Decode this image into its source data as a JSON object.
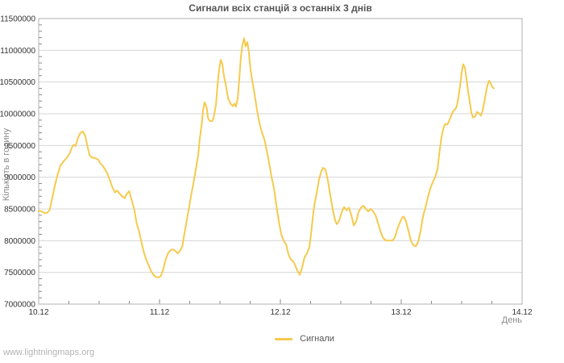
{
  "footer": {
    "text": "www.lightningmaps.org"
  },
  "colors": {
    "accent_line": "#f5ca4d",
    "grid": "#d6d6d6",
    "frame": "#b0b0b0",
    "tick": "#888888",
    "tick_text": "#333333",
    "title_text": "#555555",
    "axis_title_text": "#8a8a8a",
    "watermark_text": "#b3b3b3",
    "background": "#ffffff"
  },
  "chart_data": {
    "type": "line",
    "title": "Сигнали всіх станцій з останніх 3 днів",
    "xlabel": "День",
    "ylabel": "Кількість в годину",
    "grid": "horizontal",
    "x_range_days": [
      0,
      4
    ],
    "x_tick_labels": [
      "10.12",
      "11.12",
      "12.12",
      "13.12",
      "14.12"
    ],
    "x_tick_days": [
      0,
      1,
      2,
      3,
      4
    ],
    "x_minor_step_days": 0.25,
    "ylim": [
      7000000,
      11500000
    ],
    "y_ticks": [
      7000000,
      7500000,
      8000000,
      8500000,
      9000000,
      9500000,
      10000000,
      10500000,
      11000000,
      11500000
    ],
    "y_minor_step": 100000,
    "legend": {
      "position": "bottom-center",
      "entries": [
        {
          "label": "Сигнали",
          "color": "#f5ca4d"
        }
      ]
    },
    "series": [
      {
        "name": "Сигнали",
        "color": "#f5ca4d",
        "points": [
          [
            0.0,
            8470000
          ],
          [
            0.03,
            8460000
          ],
          [
            0.05,
            8430000
          ],
          [
            0.07,
            8440000
          ],
          [
            0.09,
            8480000
          ],
          [
            0.1,
            8560000
          ],
          [
            0.115,
            8700000
          ],
          [
            0.135,
            8880000
          ],
          [
            0.155,
            9030000
          ],
          [
            0.18,
            9180000
          ],
          [
            0.205,
            9250000
          ],
          [
            0.23,
            9300000
          ],
          [
            0.255,
            9370000
          ],
          [
            0.275,
            9470000
          ],
          [
            0.29,
            9510000
          ],
          [
            0.305,
            9490000
          ],
          [
            0.325,
            9620000
          ],
          [
            0.345,
            9700000
          ],
          [
            0.365,
            9720000
          ],
          [
            0.385,
            9650000
          ],
          [
            0.4,
            9520000
          ],
          [
            0.42,
            9350000
          ],
          [
            0.44,
            9310000
          ],
          [
            0.465,
            9300000
          ],
          [
            0.49,
            9280000
          ],
          [
            0.51,
            9220000
          ],
          [
            0.53,
            9180000
          ],
          [
            0.55,
            9120000
          ],
          [
            0.57,
            9050000
          ],
          [
            0.59,
            8950000
          ],
          [
            0.61,
            8840000
          ],
          [
            0.63,
            8760000
          ],
          [
            0.65,
            8790000
          ],
          [
            0.67,
            8740000
          ],
          [
            0.69,
            8700000
          ],
          [
            0.71,
            8670000
          ],
          [
            0.73,
            8740000
          ],
          [
            0.75,
            8780000
          ],
          [
            0.76,
            8700000
          ],
          [
            0.775,
            8600000
          ],
          [
            0.79,
            8500000
          ],
          [
            0.81,
            8280000
          ],
          [
            0.83,
            8150000
          ],
          [
            0.85,
            7980000
          ],
          [
            0.87,
            7820000
          ],
          [
            0.89,
            7700000
          ],
          [
            0.91,
            7610000
          ],
          [
            0.93,
            7520000
          ],
          [
            0.95,
            7460000
          ],
          [
            0.97,
            7430000
          ],
          [
            0.99,
            7420000
          ],
          [
            1.01,
            7440000
          ],
          [
            1.03,
            7540000
          ],
          [
            1.05,
            7700000
          ],
          [
            1.07,
            7800000
          ],
          [
            1.09,
            7850000
          ],
          [
            1.11,
            7860000
          ],
          [
            1.13,
            7840000
          ],
          [
            1.15,
            7800000
          ],
          [
            1.17,
            7840000
          ],
          [
            1.19,
            7920000
          ],
          [
            1.2,
            8050000
          ],
          [
            1.22,
            8260000
          ],
          [
            1.24,
            8480000
          ],
          [
            1.26,
            8700000
          ],
          [
            1.28,
            8900000
          ],
          [
            1.3,
            9120000
          ],
          [
            1.32,
            9350000
          ],
          [
            1.333,
            9600000
          ],
          [
            1.35,
            9850000
          ],
          [
            1.36,
            10050000
          ],
          [
            1.373,
            10180000
          ],
          [
            1.39,
            10100000
          ],
          [
            1.4,
            9940000
          ],
          [
            1.413,
            9890000
          ],
          [
            1.433,
            9880000
          ],
          [
            1.447,
            9930000
          ],
          [
            1.467,
            10150000
          ],
          [
            1.48,
            10450000
          ],
          [
            1.493,
            10700000
          ],
          [
            1.507,
            10850000
          ],
          [
            1.52,
            10780000
          ],
          [
            1.533,
            10600000
          ],
          [
            1.55,
            10440000
          ],
          [
            1.567,
            10250000
          ],
          [
            1.587,
            10160000
          ],
          [
            1.607,
            10120000
          ],
          [
            1.62,
            10160000
          ],
          [
            1.633,
            10110000
          ],
          [
            1.647,
            10250000
          ],
          [
            1.66,
            10550000
          ],
          [
            1.673,
            10900000
          ],
          [
            1.687,
            11100000
          ],
          [
            1.7,
            11190000
          ],
          [
            1.713,
            11060000
          ],
          [
            1.727,
            11130000
          ],
          [
            1.74,
            10950000
          ],
          [
            1.753,
            10700000
          ],
          [
            1.767,
            10520000
          ],
          [
            1.787,
            10300000
          ],
          [
            1.807,
            10050000
          ],
          [
            1.827,
            9850000
          ],
          [
            1.847,
            9700000
          ],
          [
            1.867,
            9600000
          ],
          [
            1.887,
            9420000
          ],
          [
            1.907,
            9220000
          ],
          [
            1.927,
            9000000
          ],
          [
            1.947,
            8820000
          ],
          [
            1.967,
            8550000
          ],
          [
            1.987,
            8300000
          ],
          [
            2.007,
            8100000
          ],
          [
            2.027,
            8000000
          ],
          [
            2.047,
            7940000
          ],
          [
            2.067,
            7780000
          ],
          [
            2.087,
            7700000
          ],
          [
            2.107,
            7670000
          ],
          [
            2.12,
            7620000
          ],
          [
            2.14,
            7530000
          ],
          [
            2.16,
            7460000
          ],
          [
            2.18,
            7580000
          ],
          [
            2.2,
            7740000
          ],
          [
            2.22,
            7800000
          ],
          [
            2.24,
            7900000
          ],
          [
            2.253,
            8100000
          ],
          [
            2.267,
            8350000
          ],
          [
            2.28,
            8550000
          ],
          [
            2.3,
            8750000
          ],
          [
            2.32,
            8970000
          ],
          [
            2.34,
            9100000
          ],
          [
            2.353,
            9150000
          ],
          [
            2.373,
            9120000
          ],
          [
            2.393,
            8950000
          ],
          [
            2.413,
            8720000
          ],
          [
            2.433,
            8500000
          ],
          [
            2.453,
            8320000
          ],
          [
            2.467,
            8260000
          ],
          [
            2.487,
            8320000
          ],
          [
            2.507,
            8450000
          ],
          [
            2.527,
            8530000
          ],
          [
            2.547,
            8480000
          ],
          [
            2.567,
            8520000
          ],
          [
            2.587,
            8400000
          ],
          [
            2.607,
            8240000
          ],
          [
            2.627,
            8300000
          ],
          [
            2.647,
            8450000
          ],
          [
            2.667,
            8520000
          ],
          [
            2.687,
            8550000
          ],
          [
            2.707,
            8500000
          ],
          [
            2.727,
            8460000
          ],
          [
            2.747,
            8500000
          ],
          [
            2.767,
            8460000
          ],
          [
            2.787,
            8400000
          ],
          [
            2.807,
            8280000
          ],
          [
            2.827,
            8150000
          ],
          [
            2.847,
            8050000
          ],
          [
            2.867,
            8010000
          ],
          [
            2.887,
            8000000
          ],
          [
            2.907,
            8000000
          ],
          [
            2.927,
            8000000
          ],
          [
            2.947,
            8050000
          ],
          [
            2.967,
            8180000
          ],
          [
            2.987,
            8280000
          ],
          [
            3.007,
            8360000
          ],
          [
            3.02,
            8380000
          ],
          [
            3.04,
            8300000
          ],
          [
            3.06,
            8150000
          ],
          [
            3.08,
            8000000
          ],
          [
            3.1,
            7930000
          ],
          [
            3.12,
            7910000
          ],
          [
            3.14,
            7980000
          ],
          [
            3.16,
            8150000
          ],
          [
            3.18,
            8380000
          ],
          [
            3.2,
            8520000
          ],
          [
            3.22,
            8680000
          ],
          [
            3.24,
            8820000
          ],
          [
            3.26,
            8920000
          ],
          [
            3.28,
            9000000
          ],
          [
            3.3,
            9120000
          ],
          [
            3.313,
            9350000
          ],
          [
            3.327,
            9550000
          ],
          [
            3.34,
            9700000
          ],
          [
            3.353,
            9800000
          ],
          [
            3.367,
            9840000
          ],
          [
            3.38,
            9830000
          ],
          [
            3.393,
            9870000
          ],
          [
            3.407,
            9940000
          ],
          [
            3.42,
            10000000
          ],
          [
            3.433,
            10050000
          ],
          [
            3.447,
            10070000
          ],
          [
            3.46,
            10120000
          ],
          [
            3.473,
            10250000
          ],
          [
            3.487,
            10450000
          ],
          [
            3.5,
            10650000
          ],
          [
            3.513,
            10780000
          ],
          [
            3.527,
            10720000
          ],
          [
            3.54,
            10550000
          ],
          [
            3.553,
            10350000
          ],
          [
            3.567,
            10180000
          ],
          [
            3.58,
            10020000
          ],
          [
            3.593,
            9940000
          ],
          [
            3.613,
            9960000
          ],
          [
            3.627,
            10030000
          ],
          [
            3.647,
            10000000
          ],
          [
            3.66,
            9970000
          ],
          [
            3.673,
            10050000
          ],
          [
            3.687,
            10180000
          ],
          [
            3.7,
            10320000
          ],
          [
            3.713,
            10450000
          ],
          [
            3.727,
            10520000
          ],
          [
            3.74,
            10480000
          ],
          [
            3.753,
            10420000
          ],
          [
            3.767,
            10400000
          ]
        ]
      }
    ]
  }
}
